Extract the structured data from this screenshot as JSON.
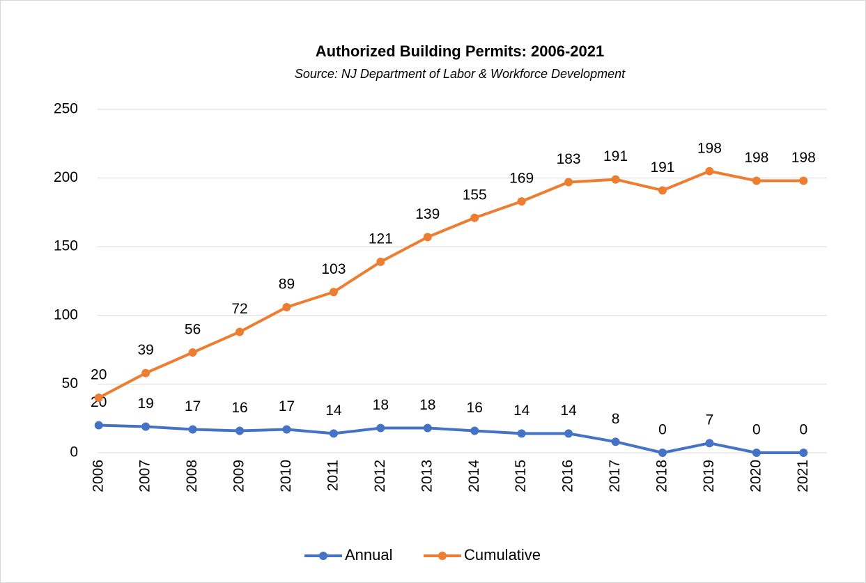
{
  "chart_data": {
    "type": "line",
    "stacked": true,
    "title": "Authorized Building Permits: 2006-2021",
    "subtitle": "Source: NJ Department of Labor & Workforce Development",
    "categories": [
      "2006",
      "2007",
      "2008",
      "2009",
      "2010",
      "2011",
      "2012",
      "2013",
      "2014",
      "2015",
      "2016",
      "2017",
      "2018",
      "2019",
      "2020",
      "2021"
    ],
    "series": [
      {
        "name": "Annual",
        "color": "#4472c4",
        "values": [
          20,
          19,
          17,
          16,
          17,
          14,
          18,
          18,
          16,
          14,
          14,
          8,
          0,
          7,
          0,
          0
        ]
      },
      {
        "name": "Cumulative",
        "color": "#ed7d31",
        "values": [
          20,
          39,
          56,
          72,
          89,
          103,
          121,
          139,
          155,
          169,
          183,
          191,
          191,
          198,
          198,
          198
        ]
      }
    ],
    "ylim": [
      0,
      250
    ],
    "yticks": [
      0,
      50,
      100,
      150,
      200,
      250
    ],
    "grid": true,
    "legend": "bottom"
  }
}
